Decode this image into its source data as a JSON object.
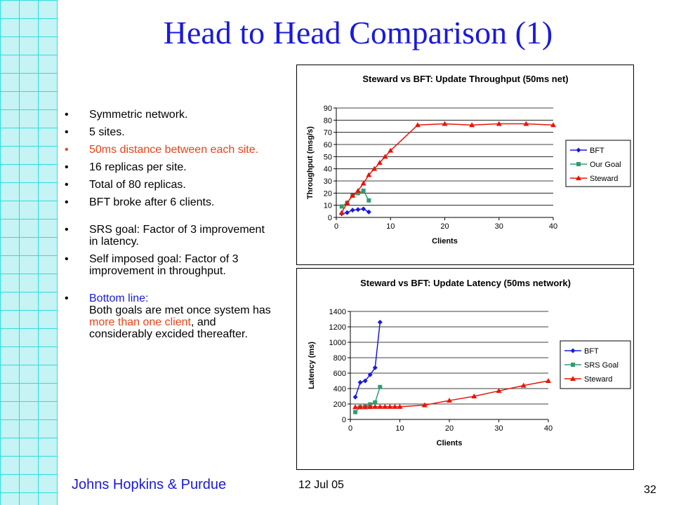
{
  "slide": {
    "title": "Head to Head Comparison (1)",
    "bullets": [
      {
        "text": "Symmetric network."
      },
      {
        "text": "5 sites."
      },
      {
        "text": "50ms distance between each site."
      },
      {
        "text": "16 replicas per site."
      },
      {
        "text": "Total of 80 replicas."
      },
      {
        "text": "BFT broke after 6 clients."
      },
      {
        "text": "SRS goal: Factor of 3 improvement in latency."
      },
      {
        "text": "Self imposed goal: Factor of 3 improvement in throughput."
      }
    ],
    "bottom_line": {
      "label": "Bottom line:",
      "part1": "Both goals are met once system has ",
      "highlight": "more than one client",
      "part2": ", and considerably excided thereafter."
    },
    "footer": {
      "institution": "Johns Hopkins & Purdue",
      "date": "12 Jul 05",
      "page": "32"
    }
  },
  "colors": {
    "title": "#1a1adc",
    "highlight": "#e8431a",
    "grid_cell": "#c6f3f3",
    "grid_line": "#2fdcdc"
  },
  "chart_data": [
    {
      "type": "line",
      "title": "Steward vs BFT:  Update Throughput (50ms net)",
      "xlabel": "Clients",
      "ylabel": "Throughput (msg/s)",
      "xlim": [
        0,
        40
      ],
      "ylim": [
        0,
        90
      ],
      "xticks": [
        0,
        10,
        20,
        30,
        40
      ],
      "yticks": [
        0,
        10,
        20,
        30,
        40,
        50,
        60,
        70,
        80,
        90
      ],
      "grid": true,
      "legend": "right",
      "series": [
        {
          "name": "BFT",
          "marker": "diamond",
          "color": "#1a1adc",
          "points": [
            [
              1,
              3
            ],
            [
              2,
              4
            ],
            [
              3,
              6
            ],
            [
              4,
              6.5
            ],
            [
              5,
              7
            ],
            [
              6,
              4.5
            ]
          ]
        },
        {
          "name": "Our Goal",
          "marker": "square",
          "color": "#2e9e6e",
          "points": [
            [
              1,
              9
            ],
            [
              2,
              12
            ],
            [
              3,
              18
            ],
            [
              4,
              20
            ],
            [
              5,
              22
            ],
            [
              6,
              14
            ]
          ]
        },
        {
          "name": "Steward",
          "marker": "triangle",
          "color": "#e8140a",
          "points": [
            [
              1,
              4
            ],
            [
              2,
              12
            ],
            [
              3,
              18
            ],
            [
              4,
              22
            ],
            [
              5,
              28
            ],
            [
              6,
              35
            ],
            [
              7,
              40
            ],
            [
              8,
              45
            ],
            [
              9,
              50
            ],
            [
              10,
              55
            ],
            [
              15,
              76
            ],
            [
              20,
              77
            ],
            [
              25,
              76
            ],
            [
              30,
              77
            ],
            [
              35,
              77
            ],
            [
              40,
              76
            ]
          ]
        }
      ]
    },
    {
      "type": "line",
      "title": "Steward vs BFT: Update Latency (50ms network)",
      "xlabel": "Clients",
      "ylabel": "Latency (ms)",
      "xlim": [
        0,
        40
      ],
      "ylim": [
        0,
        1400
      ],
      "xticks": [
        0,
        10,
        20,
        30,
        40
      ],
      "yticks": [
        0,
        200,
        400,
        600,
        800,
        1000,
        1200,
        1400
      ],
      "grid": true,
      "legend": "right",
      "series": [
        {
          "name": "BFT",
          "marker": "diamond",
          "color": "#1a1adc",
          "points": [
            [
              1,
              290
            ],
            [
              2,
              480
            ],
            [
              3,
              500
            ],
            [
              4,
              580
            ],
            [
              5,
              670
            ],
            [
              6,
              1260
            ]
          ]
        },
        {
          "name": "SRS Goal",
          "marker": "square",
          "color": "#2e9e6e",
          "points": [
            [
              1,
              95
            ],
            [
              2,
              160
            ],
            [
              3,
              165
            ],
            [
              4,
              195
            ],
            [
              5,
              220
            ],
            [
              6,
              420
            ]
          ]
        },
        {
          "name": "Steward",
          "marker": "triangle",
          "color": "#e8140a",
          "points": [
            [
              1,
              160
            ],
            [
              2,
              160
            ],
            [
              3,
              160
            ],
            [
              4,
              162
            ],
            [
              5,
              165
            ],
            [
              6,
              165
            ],
            [
              7,
              165
            ],
            [
              8,
              165
            ],
            [
              9,
              165
            ],
            [
              10,
              165
            ],
            [
              15,
              185
            ],
            [
              20,
              245
            ],
            [
              25,
              300
            ],
            [
              30,
              370
            ],
            [
              35,
              440
            ],
            [
              40,
              500
            ]
          ]
        }
      ]
    }
  ]
}
